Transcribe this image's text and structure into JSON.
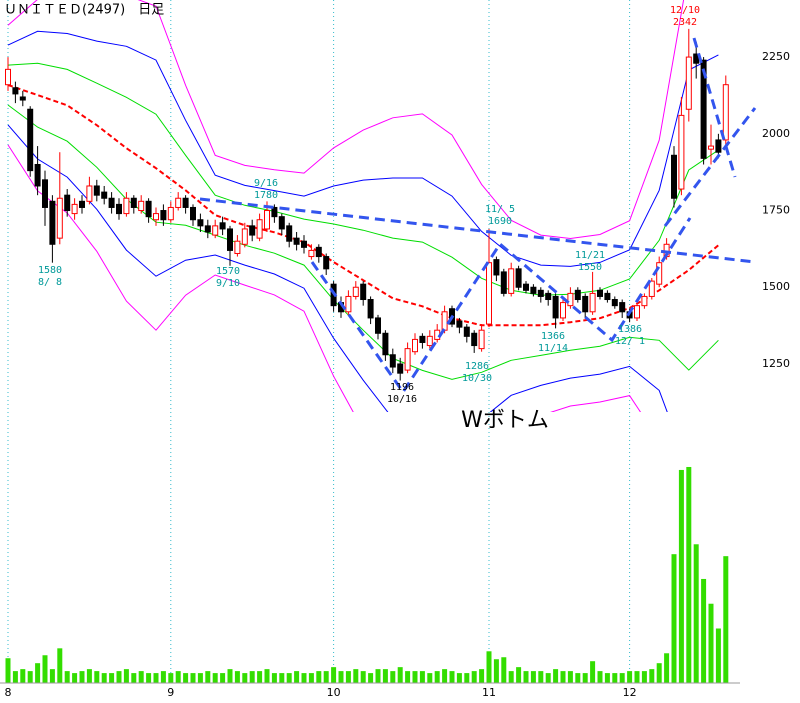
{
  "chart_data": {
    "type": "candlestick",
    "title": "ＵＮＩＴＥＤ(2497)　日足",
    "categories": [
      "8",
      null,
      null,
      null,
      null,
      null,
      null,
      null,
      null,
      null,
      null,
      null,
      null,
      null,
      null,
      null,
      null,
      null,
      null,
      null,
      null,
      null,
      "9",
      null,
      null,
      null,
      null,
      null,
      null,
      null,
      null,
      null,
      null,
      null,
      null,
      null,
      null,
      null,
      null,
      null,
      null,
      null,
      null,
      null,
      "10",
      null,
      null,
      null,
      null,
      null,
      null,
      null,
      null,
      null,
      null,
      null,
      null,
      null,
      null,
      null,
      null,
      null,
      null,
      null,
      null,
      "11",
      null,
      null,
      null,
      null,
      null,
      null,
      null,
      null,
      null,
      null,
      null,
      null,
      null,
      null,
      null,
      null,
      null,
      null,
      "12",
      null,
      null,
      null,
      null,
      null,
      null,
      null,
      null,
      null,
      null,
      null,
      null,
      null
    ],
    "ohlc": [
      [
        2160,
        2250,
        2140,
        2210
      ],
      [
        2150,
        2170,
        2100,
        2130
      ],
      [
        2120,
        2140,
        2090,
        2110
      ],
      [
        2080,
        2090,
        1860,
        1880
      ],
      [
        1900,
        1960,
        1800,
        1830
      ],
      [
        1850,
        1880,
        1700,
        1760
      ],
      [
        1780,
        1800,
        1580,
        1640
      ],
      [
        1660,
        1940,
        1640,
        1790
      ],
      [
        1800,
        1820,
        1730,
        1750
      ],
      [
        1740,
        1790,
        1720,
        1770
      ],
      [
        1780,
        1800,
        1740,
        1760
      ],
      [
        1780,
        1860,
        1770,
        1830
      ],
      [
        1830,
        1850,
        1780,
        1800
      ],
      [
        1810,
        1830,
        1770,
        1790
      ],
      [
        1790,
        1810,
        1740,
        1760
      ],
      [
        1770,
        1790,
        1720,
        1740
      ],
      [
        1740,
        1810,
        1730,
        1790
      ],
      [
        1790,
        1800,
        1740,
        1760
      ],
      [
        1750,
        1800,
        1740,
        1780
      ],
      [
        1780,
        1790,
        1710,
        1730
      ],
      [
        1720,
        1760,
        1700,
        1740
      ],
      [
        1750,
        1770,
        1700,
        1720
      ],
      [
        1720,
        1780,
        1710,
        1760
      ],
      [
        1760,
        1810,
        1750,
        1790
      ],
      [
        1790,
        1800,
        1740,
        1760
      ],
      [
        1760,
        1770,
        1700,
        1720
      ],
      [
        1720,
        1740,
        1680,
        1700
      ],
      [
        1700,
        1720,
        1660,
        1680
      ],
      [
        1670,
        1720,
        1660,
        1700
      ],
      [
        1710,
        1730,
        1670,
        1690
      ],
      [
        1690,
        1700,
        1570,
        1620
      ],
      [
        1610,
        1670,
        1600,
        1650
      ],
      [
        1640,
        1710,
        1630,
        1690
      ],
      [
        1700,
        1720,
        1650,
        1670
      ],
      [
        1660,
        1740,
        1650,
        1720
      ],
      [
        1690,
        1780,
        1680,
        1750
      ],
      [
        1760,
        1770,
        1710,
        1730
      ],
      [
        1730,
        1740,
        1670,
        1690
      ],
      [
        1700,
        1710,
        1630,
        1650
      ],
      [
        1660,
        1680,
        1620,
        1640
      ],
      [
        1650,
        1670,
        1610,
        1630
      ],
      [
        1600,
        1640,
        1590,
        1620
      ],
      [
        1630,
        1640,
        1580,
        1600
      ],
      [
        1600,
        1610,
        1540,
        1560
      ],
      [
        1510,
        1520,
        1420,
        1440
      ],
      [
        1450,
        1470,
        1400,
        1420
      ],
      [
        1420,
        1490,
        1410,
        1470
      ],
      [
        1470,
        1520,
        1460,
        1500
      ],
      [
        1510,
        1520,
        1440,
        1460
      ],
      [
        1460,
        1470,
        1380,
        1400
      ],
      [
        1400,
        1410,
        1330,
        1350
      ],
      [
        1350,
        1360,
        1260,
        1280
      ],
      [
        1280,
        1300,
        1220,
        1240
      ],
      [
        1250,
        1270,
        1196,
        1220
      ],
      [
        1230,
        1320,
        1220,
        1300
      ],
      [
        1290,
        1350,
        1280,
        1330
      ],
      [
        1340,
        1350,
        1300,
        1320
      ],
      [
        1310,
        1360,
        1300,
        1340
      ],
      [
        1330,
        1380,
        1320,
        1360
      ],
      [
        1360,
        1440,
        1350,
        1420
      ],
      [
        1430,
        1440,
        1370,
        1380
      ],
      [
        1390,
        1400,
        1350,
        1370
      ],
      [
        1370,
        1380,
        1320,
        1340
      ],
      [
        1350,
        1360,
        1286,
        1310
      ],
      [
        1300,
        1380,
        1290,
        1360
      ],
      [
        1380,
        1690,
        1370,
        1580
      ],
      [
        1590,
        1600,
        1520,
        1540
      ],
      [
        1550,
        1560,
        1470,
        1480
      ],
      [
        1480,
        1580,
        1470,
        1560
      ],
      [
        1560,
        1570,
        1490,
        1500
      ],
      [
        1510,
        1520,
        1480,
        1490
      ],
      [
        1500,
        1510,
        1470,
        1480
      ],
      [
        1490,
        1500,
        1450,
        1470
      ],
      [
        1480,
        1490,
        1440,
        1460
      ],
      [
        1470,
        1480,
        1366,
        1400
      ],
      [
        1400,
        1460,
        1390,
        1450
      ],
      [
        1440,
        1500,
        1430,
        1480
      ],
      [
        1490,
        1500,
        1450,
        1460
      ],
      [
        1470,
        1480,
        1400,
        1420
      ],
      [
        1420,
        1550,
        1410,
        1480
      ],
      [
        1490,
        1500,
        1460,
        1470
      ],
      [
        1480,
        1490,
        1450,
        1460
      ],
      [
        1460,
        1470,
        1430,
        1440
      ],
      [
        1450,
        1460,
        1400,
        1420
      ],
      [
        1420,
        1430,
        1386,
        1400
      ],
      [
        1400,
        1450,
        1390,
        1440
      ],
      [
        1440,
        1480,
        1430,
        1470
      ],
      [
        1470,
        1530,
        1460,
        1520
      ],
      [
        1510,
        1600,
        1500,
        1580
      ],
      [
        1600,
        1660,
        1590,
        1640
      ],
      [
        1930,
        1960,
        1760,
        1790
      ],
      [
        1820,
        2120,
        1800,
        2060
      ],
      [
        2080,
        2342,
        2040,
        2250
      ],
      [
        2260,
        2300,
        2180,
        2230
      ],
      [
        2240,
        2250,
        1900,
        1920
      ],
      [
        1950,
        2030,
        1900,
        1960
      ],
      [
        1980,
        2000,
        1920,
        1940
      ],
      [
        1980,
        2190,
        1960,
        2160
      ]
    ],
    "up_color": "#ff0000",
    "down_color": "#000000",
    "ylim": [
      1100,
      2436
    ],
    "yticks": [
      2250,
      2000,
      1750,
      1500,
      1250
    ],
    "bands": [
      {
        "color": "#ff00ff",
        "dash": false,
        "x": [
          0,
          4,
          8,
          12,
          16,
          20,
          24,
          28,
          32,
          36,
          40,
          44,
          48,
          52,
          56,
          60,
          64,
          68,
          72,
          76,
          80,
          84,
          88,
          92,
          96
        ],
        "values": [
          2354,
          2438,
          2444,
          2439,
          2451,
          2416,
          2158,
          1930,
          1897,
          1883,
          1872,
          1954,
          2012,
          2052,
          2065,
          1996,
          1835,
          1718,
          1670,
          1659,
          1672,
          1717,
          1979,
          2534,
          2567
        ]
      },
      {
        "color": "#0000ff",
        "dash": false,
        "x": [
          0,
          4,
          8,
          12,
          16,
          20,
          24,
          28,
          32,
          36,
          40,
          44,
          48,
          52,
          56,
          60,
          64,
          68,
          72,
          76,
          80,
          84,
          88,
          92,
          96
        ],
        "values": [
          2289,
          2334,
          2327,
          2302,
          2285,
          2240,
          2044,
          1865,
          1832,
          1815,
          1797,
          1830,
          1849,
          1856,
          1856,
          1797,
          1682,
          1604,
          1572,
          1568,
          1581,
          1622,
          1816,
          2208,
          2257
        ]
      },
      {
        "color": "#00dd00",
        "dash": false,
        "x": [
          0,
          4,
          8,
          12,
          16,
          20,
          24,
          28,
          32,
          36,
          40,
          44,
          48,
          52,
          56,
          60,
          64,
          68,
          72,
          76,
          80,
          84,
          88,
          92,
          96
        ],
        "values": [
          2224,
          2230,
          2210,
          2165,
          2119,
          2064,
          1930,
          1800,
          1767,
          1747,
          1722,
          1706,
          1686,
          1660,
          1647,
          1598,
          1529,
          1490,
          1474,
          1477,
          1490,
          1527,
          1653,
          1882,
          1947
        ]
      },
      {
        "color": "#ff0000",
        "dash": true,
        "x": [
          0,
          4,
          8,
          12,
          16,
          20,
          24,
          28,
          32,
          36,
          40,
          44,
          48,
          52,
          56,
          60,
          64,
          68,
          72,
          76,
          80,
          84,
          88,
          92,
          96
        ],
        "values": [
          2159,
          2126,
          2093,
          2028,
          1953,
          1888,
          1816,
          1735,
          1702,
          1679,
          1647,
          1582,
          1523,
          1464,
          1438,
          1399,
          1376,
          1376,
          1376,
          1386,
          1399,
          1432,
          1490,
          1556,
          1637
        ]
      },
      {
        "color": "#00dd00",
        "dash": false,
        "x": [
          0,
          4,
          8,
          12,
          16,
          20,
          24,
          28,
          32,
          36,
          40,
          44,
          48,
          52,
          56,
          60,
          64,
          68,
          72,
          76,
          80,
          84,
          88,
          92,
          96
        ],
        "values": [
          2094,
          2022,
          1976,
          1891,
          1787,
          1712,
          1702,
          1670,
          1637,
          1611,
          1572,
          1458,
          1360,
          1268,
          1229,
          1200,
          1223,
          1262,
          1278,
          1295,
          1308,
          1337,
          1327,
          1230,
          1327
        ]
      },
      {
        "color": "#0000ff",
        "dash": false,
        "x": [
          0,
          4,
          8,
          12,
          16,
          20,
          24,
          28,
          32,
          36,
          40,
          44,
          48,
          52,
          56,
          60,
          64,
          68,
          72,
          76,
          80,
          84,
          88,
          92,
          96
        ],
        "values": [
          2029,
          1918,
          1859,
          1754,
          1621,
          1536,
          1588,
          1605,
          1572,
          1543,
          1497,
          1334,
          1197,
          1072,
          1020,
          1001,
          1070,
          1148,
          1180,
          1204,
          1217,
          1242,
          1164,
          904,
          1017
        ]
      },
      {
        "color": "#ff00ff",
        "dash": false,
        "x": [
          0,
          4,
          8,
          12,
          16,
          20,
          24,
          28,
          32,
          36,
          40,
          44,
          48,
          52,
          56,
          60,
          64,
          68,
          72,
          76,
          80,
          84,
          88,
          92,
          96
        ],
        "values": [
          1964,
          1814,
          1742,
          1617,
          1455,
          1360,
          1474,
          1540,
          1507,
          1475,
          1422,
          1210,
          1034,
          876,
          811,
          802,
          917,
          1034,
          1082,
          1113,
          1126,
          1147,
          1001,
          578,
          707
        ]
      }
    ],
    "volume": {
      "color": "#33dd00",
      "vlim": [
        0,
        220
      ],
      "values": [
        25,
        12,
        14,
        12,
        20,
        28,
        14,
        35,
        12,
        10,
        12,
        14,
        12,
        10,
        10,
        12,
        14,
        10,
        12,
        10,
        10,
        12,
        10,
        12,
        10,
        10,
        10,
        12,
        10,
        10,
        14,
        12,
        10,
        12,
        12,
        14,
        10,
        10,
        10,
        12,
        10,
        10,
        12,
        12,
        16,
        12,
        12,
        14,
        12,
        10,
        14,
        14,
        12,
        16,
        12,
        12,
        12,
        10,
        12,
        14,
        12,
        10,
        10,
        12,
        14,
        32,
        24,
        26,
        12,
        16,
        12,
        12,
        12,
        10,
        14,
        12,
        12,
        10,
        10,
        22,
        12,
        10,
        10,
        10,
        12,
        12,
        12,
        14,
        20,
        30,
        130,
        215,
        218,
        140,
        105,
        80,
        55,
        128
      ]
    },
    "annotations": [
      {
        "color": "#009999",
        "lines": [
          "1580",
          "8/ 8"
        ]
      },
      {
        "color": "#009999",
        "lines": [
          "9/16",
          "1780"
        ]
      },
      {
        "color": "#009999",
        "lines": [
          "1570",
          "9/10"
        ]
      },
      {
        "color": "#000000",
        "lines": [
          "1196",
          "10/16"
        ]
      },
      {
        "color": "#009999",
        "lines": [
          "1286",
          "10/30"
        ]
      },
      {
        "color": "#009999",
        "lines": [
          "11/ 5",
          "1690"
        ]
      },
      {
        "color": "#009999",
        "lines": [
          "1366",
          "11/14"
        ]
      },
      {
        "color": "#009999",
        "lines": [
          "11/21",
          "1550"
        ]
      },
      {
        "color": "#009999",
        "lines": [
          "1386",
          "12/ 1"
        ]
      },
      {
        "color": "#ff0000",
        "lines": [
          "12/10",
          "2342"
        ]
      }
    ],
    "pattern_label": "Wボトム",
    "grid": true
  }
}
